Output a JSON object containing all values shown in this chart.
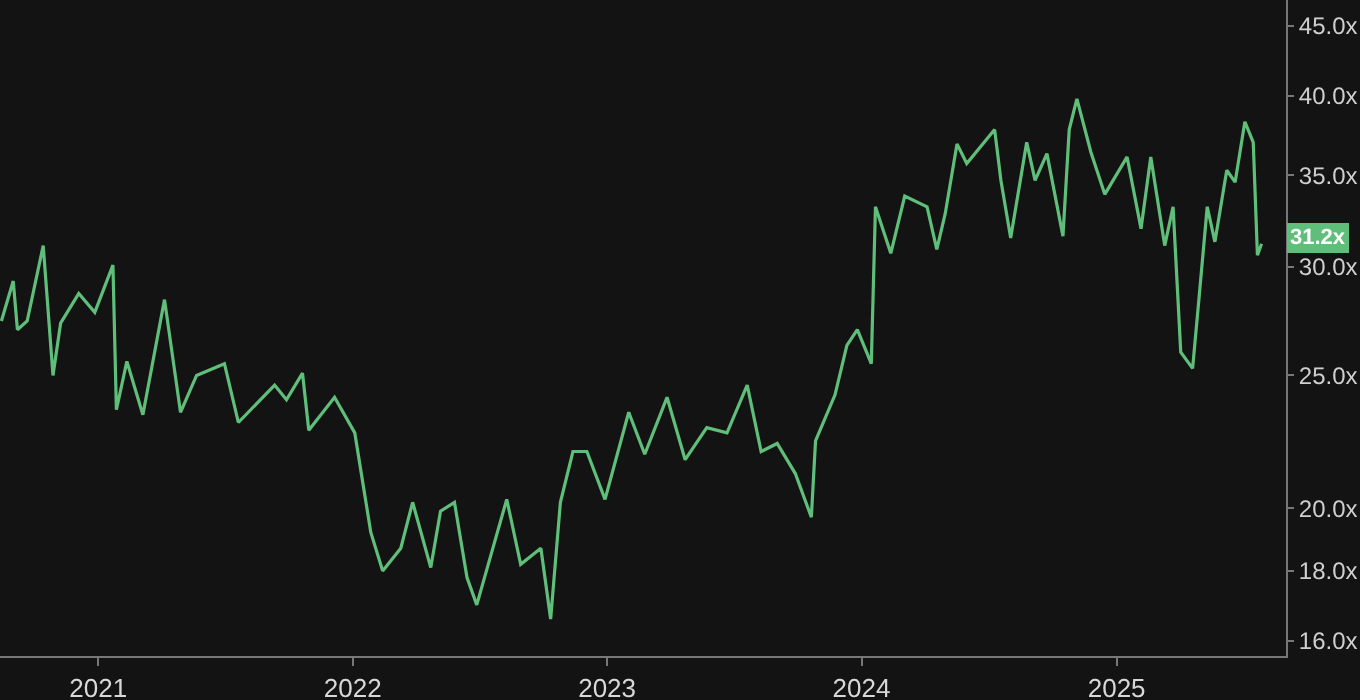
{
  "chart_data": {
    "type": "line",
    "log": "y",
    "grid": false,
    "marker": "none",
    "line_style": "solid",
    "xlim": [
      "2020-08-13",
      "2025-09-01"
    ],
    "xticks": [
      {
        "value": "2021-01-01",
        "label": "2021"
      },
      {
        "value": "2022-01-01",
        "label": "2022"
      },
      {
        "value": "2023-01-01",
        "label": "2023"
      },
      {
        "value": "2024-01-01",
        "label": "2024"
      },
      {
        "value": "2025-01-01",
        "label": "2025"
      }
    ],
    "ylim": [
      15.6,
      47
    ],
    "yticks": [
      {
        "value": 16,
        "label": "16.0x"
      },
      {
        "value": 18,
        "label": "18.0x"
      },
      {
        "value": 20,
        "label": "20.0x"
      },
      {
        "value": 25,
        "label": "25.0x"
      },
      {
        "value": 30,
        "label": "30.0x"
      },
      {
        "value": 35,
        "label": "35.0x"
      },
      {
        "value": 40,
        "label": "40.0x"
      },
      {
        "value": 45,
        "label": "45.0x"
      }
    ],
    "x": [
      "2020-08-15",
      "2020-09-01",
      "2020-09-07",
      "2020-09-21",
      "2020-10-14",
      "2020-10-28",
      "2020-11-08",
      "2020-12-04",
      "2020-12-27",
      "2021-01-22",
      "2021-01-27",
      "2021-02-11",
      "2021-03-06",
      "2021-04-06",
      "2021-04-29",
      "2021-05-22",
      "2021-07-01",
      "2021-07-21",
      "2021-09-11",
      "2021-09-28",
      "2021-10-21",
      "2021-10-30",
      "2021-12-06",
      "2022-01-04",
      "2022-01-27",
      "2022-02-13",
      "2022-03-11",
      "2022-03-28",
      "2022-04-23",
      "2022-05-07",
      "2022-05-27",
      "2022-06-14",
      "2022-06-28",
      "2022-08-10",
      "2022-08-30",
      "2022-09-28",
      "2022-10-12",
      "2022-10-26",
      "2022-11-13",
      "2022-12-03",
      "2022-12-29",
      "2023-02-01",
      "2023-02-24",
      "2023-03-28",
      "2023-04-23",
      "2023-05-24",
      "2023-06-22",
      "2023-07-21",
      "2023-08-10",
      "2023-09-02",
      "2023-09-28",
      "2023-10-21",
      "2023-10-27",
      "2023-11-24",
      "2023-12-11",
      "2023-12-26",
      "2024-01-15",
      "2024-01-21",
      "2024-02-12",
      "2024-03-03",
      "2024-04-04",
      "2024-04-18",
      "2024-04-30",
      "2024-05-17",
      "2024-05-31",
      "2024-07-10",
      "2024-07-19",
      "2024-08-02",
      "2024-08-25",
      "2024-09-06",
      "2024-09-23",
      "2024-10-16",
      "2024-10-25",
      "2024-11-05",
      "2024-11-25",
      "2024-12-15",
      "2025-01-16",
      "2025-02-05",
      "2025-02-19",
      "2025-03-11",
      "2025-03-23",
      "2025-04-03",
      "2025-04-20",
      "2025-04-29",
      "2025-05-11",
      "2025-05-22",
      "2025-06-08",
      "2025-06-20",
      "2025-07-04",
      "2025-07-16",
      "2025-07-22",
      "2025-07-28"
    ],
    "series": [
      {
        "color": "#5fbf7a",
        "values": [
          27.4,
          29.3,
          27.0,
          27.4,
          31.1,
          25.0,
          27.3,
          28.7,
          27.8,
          30.1,
          23.6,
          25.6,
          23.4,
          28.4,
          23.5,
          25.0,
          25.5,
          23.1,
          24.6,
          24.0,
          25.1,
          22.8,
          24.1,
          22.7,
          19.2,
          18.0,
          18.7,
          20.2,
          18.1,
          19.9,
          20.2,
          17.8,
          17.0,
          20.3,
          18.2,
          18.7,
          16.6,
          20.2,
          22.0,
          22.0,
          20.3,
          23.5,
          21.9,
          24.1,
          21.7,
          22.9,
          22.7,
          24.6,
          22.0,
          22.3,
          21.2,
          19.7,
          22.4,
          24.2,
          26.3,
          27.0,
          25.5,
          33.2,
          30.7,
          33.8,
          33.2,
          30.9,
          32.8,
          36.9,
          35.7,
          37.8,
          34.7,
          31.5,
          37.0,
          34.7,
          36.3,
          31.6,
          37.8,
          39.8,
          36.4,
          33.9,
          36.1,
          32.0,
          36.1,
          31.1,
          33.2,
          26.0,
          25.3,
          28.4,
          33.2,
          31.3,
          35.3,
          34.6,
          38.3,
          37.0,
          30.6,
          31.2
        ]
      }
    ],
    "annotations": [
      {
        "text": "31.2x",
        "x": "2025-07-28",
        "y": 31.2
      }
    ]
  }
}
